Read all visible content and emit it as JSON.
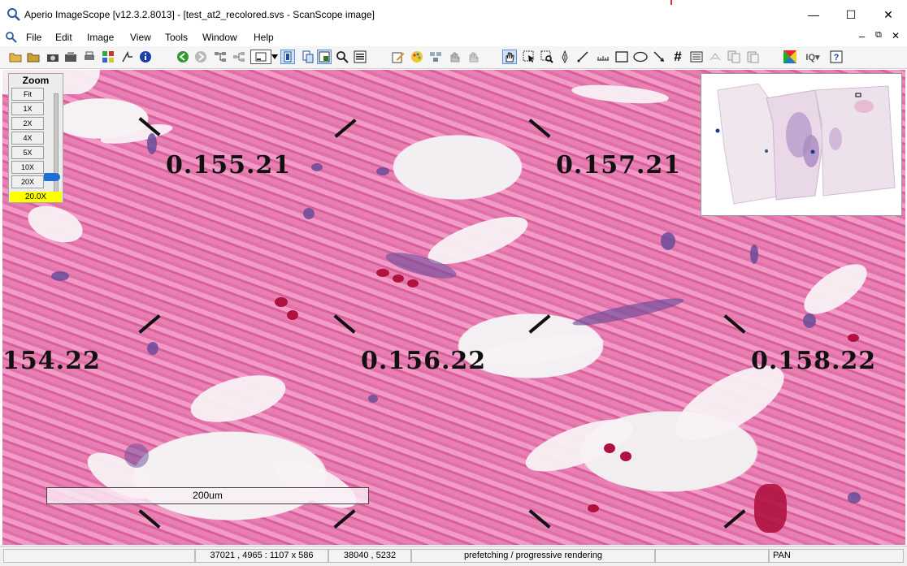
{
  "window": {
    "title": "Aperio ImageScope [v12.3.2.8013] - [test_at2_recolored.svs - ScanScope image]",
    "controls": {
      "minimize": "—",
      "maximize": "☐",
      "close": "✕"
    }
  },
  "menu": {
    "items": [
      "File",
      "Edit",
      "Image",
      "View",
      "Tools",
      "Window",
      "Help"
    ],
    "child_controls": {
      "minimize": "–",
      "restore": "⧉",
      "close": "✕"
    }
  },
  "toolbar": {
    "icons": [
      "open-folder-icon",
      "folder-icon",
      "camera-icon",
      "extract-icon",
      "print-icon",
      "tile-icon",
      "mark-icon",
      "info-icon",
      "back-icon",
      "forward-icon",
      "tree-icon",
      "tree-collapse-icon",
      "view-select-icon",
      "dropdown-icon",
      "view-icon",
      "view2-icon",
      "view3-icon",
      "search-icon",
      "annotation-icon",
      "edit-icon",
      "palette-icon",
      "compare-icon",
      "hand-undo-icon",
      "hand-redo-icon",
      "pan-icon",
      "select-arrow-icon",
      "zoom-select-icon",
      "pen-icon",
      "ruler-icon",
      "rectangle-icon",
      "ellipse-icon",
      "arrow-icon",
      "grid-icon",
      "list-icon",
      "ink-icon",
      "copy-icon",
      "paste-icon",
      "color-icon",
      "iq-icon",
      "help-icon"
    ]
  },
  "zoom_panel": {
    "title": "Zoom",
    "buttons": [
      "Fit",
      "1X",
      "2X",
      "4X",
      "5X",
      "10X",
      "20X"
    ],
    "current": "20.0X",
    "level": 20
  },
  "overlay_labels": [
    "0.155.21",
    "0.157.21",
    "154.22",
    "0.156.22",
    "0.158.22"
  ],
  "scalebar": {
    "label": "200um"
  },
  "status": {
    "coords": "37021 , 4965 : 1107 x 586",
    "cursor": "38040 , 5232",
    "message": "prefetching / progressive rendering",
    "mode": "PAN"
  },
  "colors": {
    "tissue": "#e07aaf",
    "tissue_dark": "#d95f9c",
    "zoom_highlight": "#ffff00",
    "slider": "#1e6fd6"
  }
}
